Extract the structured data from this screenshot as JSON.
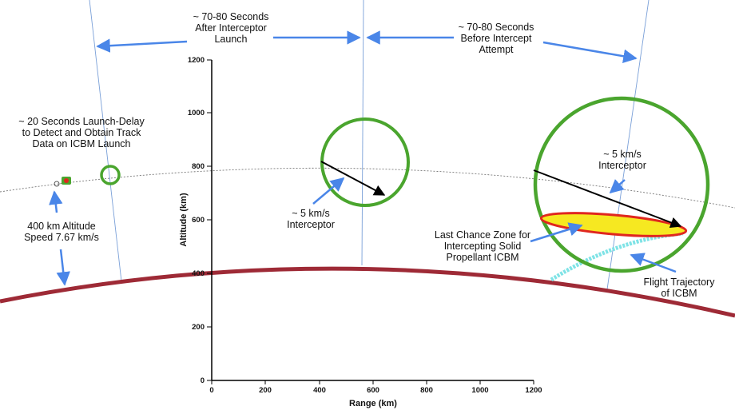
{
  "labels": {
    "after_launch": [
      "~ 70-80 Seconds",
      "After Interceptor",
      "Launch"
    ],
    "before_intercept": [
      "~ 70-80 Seconds",
      "Before Intercept",
      "Attempt"
    ],
    "launch_delay": [
      "~ 20 Seconds Launch-Delay",
      "to Detect and Obtain Track",
      "Data on ICBM Launch"
    ],
    "altitude_speed": [
      "400 km Altitude",
      "Speed 7.67 km/s"
    ],
    "interceptor_mid": [
      "~ 5 km/s",
      "Interceptor"
    ],
    "interceptor_right": [
      "~ 5 km/s",
      "Interceptor"
    ],
    "last_chance": [
      "Last Chance Zone for",
      "Intercepting Solid",
      "Propellant ICBM"
    ],
    "flight_trajectory": [
      "Flight Trajectory",
      "of ICBM"
    ]
  },
  "axes": {
    "x_title": "Range (km)",
    "y_title": "Altitude (km)",
    "x_ticks": [
      "0",
      "200",
      "400",
      "600",
      "800",
      "1000",
      "1200"
    ],
    "y_ticks": [
      "0",
      "200",
      "400",
      "600",
      "800",
      "1000",
      "1200"
    ]
  },
  "colors": {
    "earth": "#9e2a36",
    "ring": "#4aa52e",
    "callout_arrow": "#4a86e8",
    "zone_fill": "#f6e821",
    "zone_border": "#e0271f",
    "trajectory": "#7fe3e6",
    "orbit": "#777777"
  }
}
